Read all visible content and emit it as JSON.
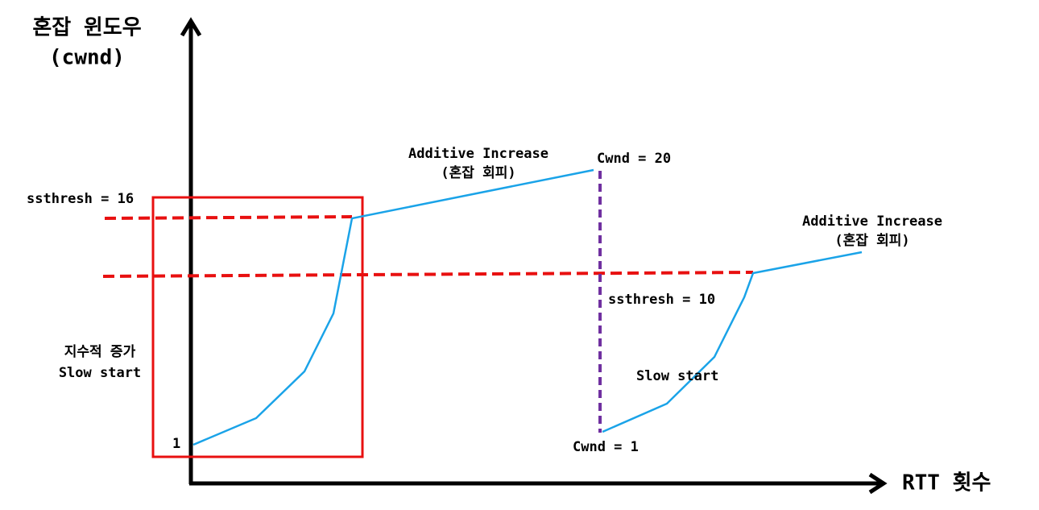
{
  "axes": {
    "y_label": [
      "혼잡 윈도우",
      "(cwnd)"
    ],
    "x_label": "RTT 횟수"
  },
  "annotations": {
    "ssthresh_first": "ssthresh = 16",
    "additive_first": [
      "Additive Increase",
      "(혼잡 회피)"
    ],
    "cwnd_peak": "Cwnd = 20",
    "additive_second": [
      "Additive Increase",
      "(혼잡 회피)"
    ],
    "ssthresh_second": "ssthresh = 10",
    "slow_start_first": [
      "지수적 증가",
      "Slow start"
    ],
    "slow_start_second": "Slow start",
    "start_value": "1",
    "cwnd_reset": "Cwnd = 1"
  }
}
